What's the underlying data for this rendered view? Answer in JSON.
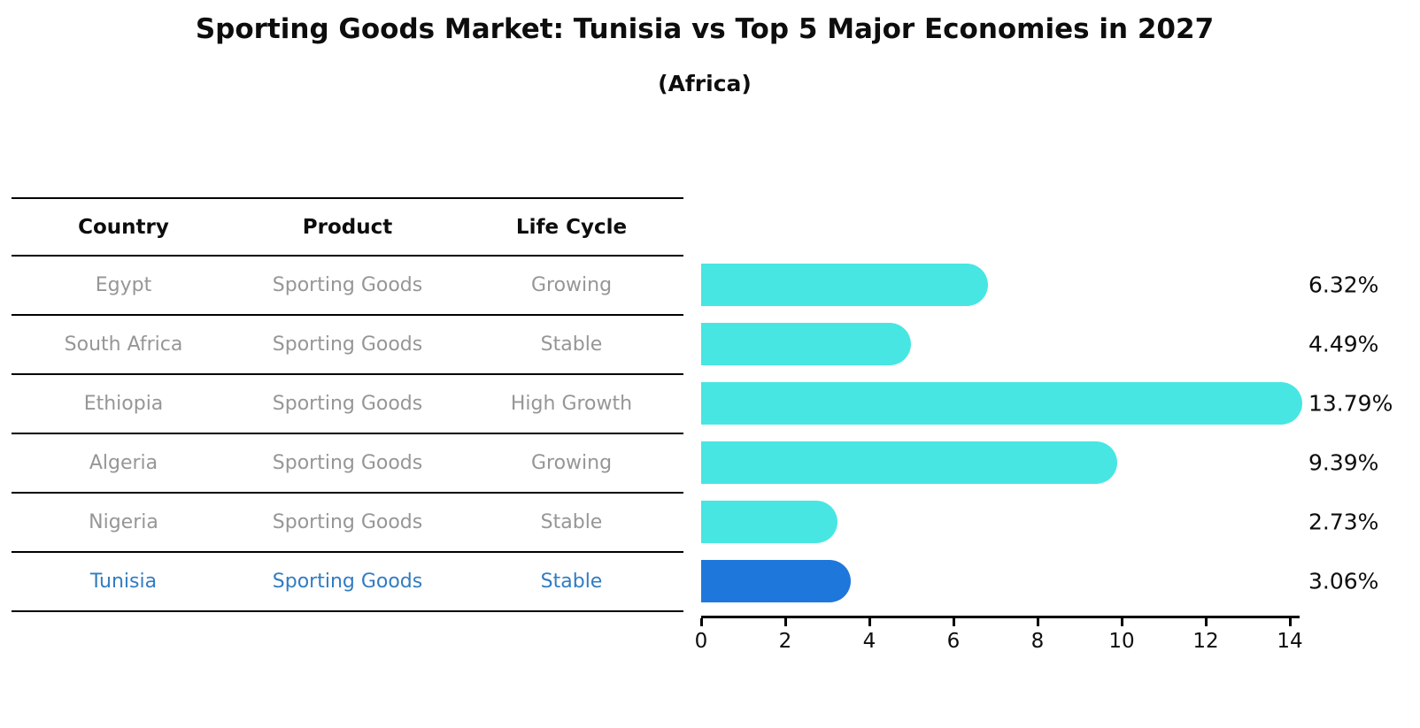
{
  "header": {
    "title": "Sporting Goods Market: Tunisia vs Top 5 Major Economies in 2027",
    "subtitle": "(Africa)"
  },
  "table": {
    "columns": [
      "Country",
      "Product",
      "Life Cycle"
    ],
    "rows": [
      {
        "country": "Egypt",
        "product": "Sporting Goods",
        "life_cycle": "Growing",
        "highlighted": false
      },
      {
        "country": "South Africa",
        "product": "Sporting Goods",
        "life_cycle": "Stable",
        "highlighted": false
      },
      {
        "country": "Ethiopia",
        "product": "Sporting Goods",
        "life_cycle": "High Growth",
        "highlighted": false
      },
      {
        "country": "Algeria",
        "product": "Sporting Goods",
        "life_cycle": "Growing",
        "highlighted": false
      },
      {
        "country": "Nigeria",
        "product": "Sporting Goods",
        "life_cycle": "Stable",
        "highlighted": false
      },
      {
        "country": "Tunisia",
        "product": "Sporting Goods",
        "life_cycle": "Stable",
        "highlighted": true
      }
    ]
  },
  "chart_data": {
    "type": "bar",
    "orientation": "horizontal",
    "title": "Sporting Goods Market: Tunisia vs Top 5 Major Economies in 2027",
    "subtitle": "(Africa)",
    "categories": [
      "Egypt",
      "South Africa",
      "Ethiopia",
      "Algeria",
      "Nigeria",
      "Tunisia"
    ],
    "values": [
      6.32,
      4.49,
      13.79,
      9.39,
      2.73,
      3.06
    ],
    "labels": [
      "6.32%",
      "4.49%",
      "13.79%",
      "9.39%",
      "2.73%",
      "3.06%"
    ],
    "xlabel": "",
    "ylabel": "",
    "xlim": [
      0,
      14.4
    ],
    "xticks": [
      0,
      2,
      4,
      6,
      8,
      10,
      12,
      14
    ],
    "grid": false,
    "legend": false,
    "bar_color": "#48E6E2",
    "highlight_color": "#1E77DB",
    "highlight_index": 5,
    "highlight_text_color": "#317CC2",
    "highlight_border_style": "dotted"
  }
}
